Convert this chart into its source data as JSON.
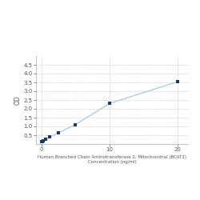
{
  "x": [
    0,
    0.156,
    0.313,
    0.625,
    1.25,
    2.5,
    5,
    10,
    20
  ],
  "y": [
    0.116,
    0.154,
    0.197,
    0.276,
    0.403,
    0.638,
    1.107,
    2.305,
    3.54
  ],
  "line_color": "#aecde3",
  "marker_color": "#1a3a6b",
  "marker_size": 3.5,
  "line_width": 1.0,
  "xlabel_line1": "Human Branched Chain Aminotransferase 2, Mitochondrial (BCAT2)",
  "xlabel_line2": "Concentration (ng/ml)",
  "ylabel": "OD",
  "xlim": [
    -0.8,
    21.5
  ],
  "ylim": [
    0,
    5.0
  ],
  "yticks": [
    0.5,
    1.0,
    1.5,
    2.0,
    2.5,
    3.0,
    3.5,
    4.0,
    4.5
  ],
  "xticks": [
    0,
    10,
    20
  ],
  "grid_color": "#d0d0d0",
  "background_color": "#ffffff",
  "xlabel_fontsize": 4.0,
  "ylabel_fontsize": 5.5,
  "tick_fontsize": 5.0
}
